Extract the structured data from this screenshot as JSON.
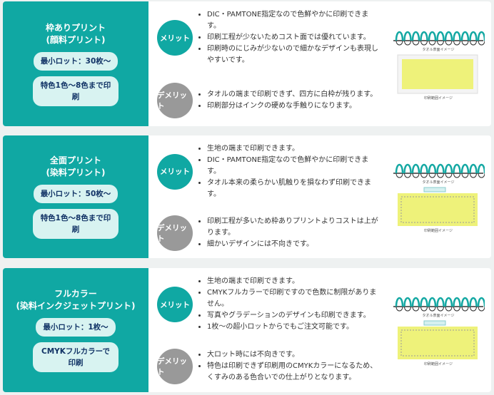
{
  "cards": [
    {
      "title": "枠ありプリント",
      "subtitle": "(顔料プリント)",
      "badges": [
        "最小ロット：30枚～",
        "特色1色～8色まで印刷"
      ],
      "merit_label": "メリット",
      "merits": [
        "DIC・PAMTONE指定なので色鮮やかに印刷できます。",
        "印刷工程が少ないためコスト面では優れています。",
        "印刷時のにじみが少ないので細かなデザインも表現しやすいです。"
      ],
      "demerit_label": "デメリット",
      "demerits": [
        "タオルの端まで印刷できず、四方に白枠が残ります。",
        "印刷部分はインクの硬めな手触りになります。"
      ],
      "image_captions": [
        "タオル表面イメージ",
        "印刷範囲イメージ"
      ]
    },
    {
      "title": "全面プリント",
      "subtitle": "(染料プリント)",
      "badges": [
        "最小ロット：50枚～",
        "特色1色～8色まで印刷"
      ],
      "merit_label": "メリット",
      "merits": [
        "生地の端まで印刷できます。",
        "DIC・PAMTONE指定なので色鮮やかに印刷できます。",
        "タオル本来の柔らかい肌触りを損なわず印刷できます。"
      ],
      "demerit_label": "デメリット",
      "demerits": [
        "印刷工程が多いため枠ありプリントよりコストは上がります。",
        "細かいデザインには不向きです。"
      ],
      "image_captions": [
        "タオル表面イメージ",
        "印刷範囲イメージ"
      ]
    },
    {
      "title": "フルカラー",
      "subtitle": "(染料インクジェットプリント)",
      "badges": [
        "最小ロット：1枚～",
        "CMYKフルカラーで印刷"
      ],
      "merit_label": "メリット",
      "merits": [
        "生地の端まで印刷できます。",
        "CMYKフルカラーで印刷ですので色数に制限がありません。",
        "写真やグラデーションのデザインも印刷できます。",
        "1枚～の超小ロットからでもご注文可能です。"
      ],
      "demerit_label": "デメリット",
      "demerits": [
        "大ロット時には不向きです。",
        "特色は印刷できず印刷用のCMYKカラーになるため、くすみのある色合いでの仕上がりとなります。"
      ],
      "image_captions": [
        "タオル表面イメージ",
        "印刷範囲イメージ"
      ]
    }
  ]
}
